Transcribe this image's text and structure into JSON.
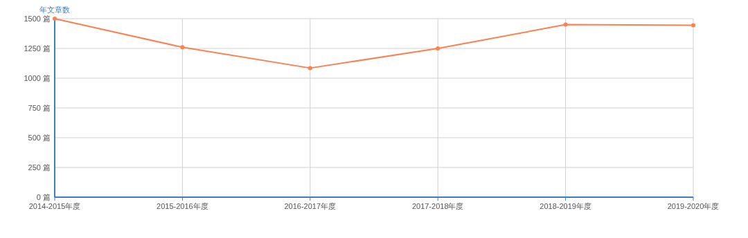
{
  "chart_data": {
    "type": "line",
    "ylabel": "年文章数",
    "categories": [
      "2014-2015年度",
      "2015-2016年度",
      "2016-2017年度",
      "2017-2018年度",
      "2018-2019年度",
      "2019-2020年度"
    ],
    "series": [
      {
        "color": "#ff7f50",
        "values": [
          1500,
          1260,
          1085,
          1250,
          1450,
          1445
        ]
      }
    ],
    "ylim": [
      0,
      1500
    ],
    "yticks": [
      {
        "value": 0,
        "label": "0 篇"
      },
      {
        "value": 250,
        "label": "250 篇"
      },
      {
        "value": 500,
        "label": "500 篇"
      },
      {
        "value": 750,
        "label": "750 篇"
      },
      {
        "value": 1000,
        "label": "1000 篇"
      },
      {
        "value": 1250,
        "label": "1250 篇"
      },
      {
        "value": 1500,
        "label": "1500 篇"
      }
    ],
    "grid": true,
    "marker": "circle",
    "line_style": "solid"
  }
}
